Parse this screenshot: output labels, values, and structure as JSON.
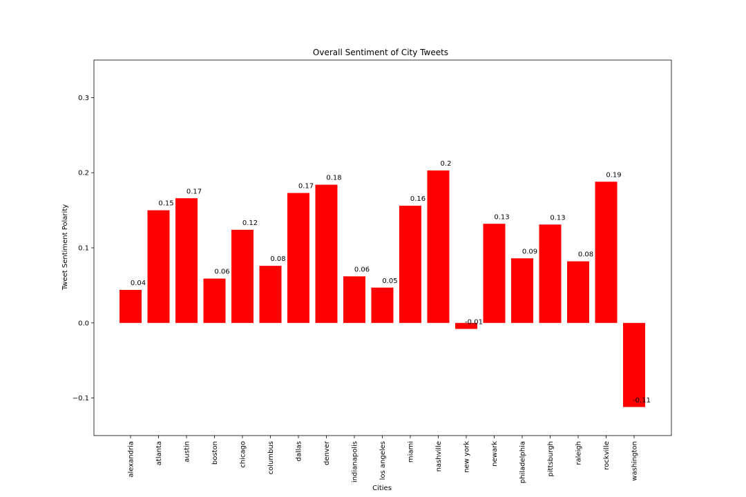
{
  "chart_data": {
    "type": "bar",
    "title": "Overall Sentiment of City Tweets",
    "xlabel": "Cities",
    "ylabel": "Tweet Sentiment Polarity",
    "categories": [
      "alexandria",
      "atlanta",
      "austin",
      "boston",
      "chicago",
      "columbus",
      "dallas",
      "denver",
      "indianapolis",
      "los angeles",
      "miami",
      "nashville",
      "new york",
      "newark",
      "philadelphia",
      "pittsburgh",
      "raleigh",
      "rockville",
      "washington"
    ],
    "values": [
      0.044,
      0.15,
      0.166,
      0.059,
      0.124,
      0.076,
      0.173,
      0.184,
      0.062,
      0.047,
      0.156,
      0.203,
      -0.008,
      0.132,
      0.086,
      0.131,
      0.082,
      0.188,
      -0.112
    ],
    "value_labels": [
      "0.04",
      "0.15",
      "0.17",
      "0.06",
      "0.12",
      "0.08",
      "0.17",
      "0.18",
      "0.06",
      "0.05",
      "0.16",
      "0.2",
      "-0.01",
      "0.13",
      "0.09",
      "0.13",
      "0.08",
      "0.19",
      "-0.11"
    ],
    "ylim": [
      -0.15,
      0.35
    ],
    "yticks": [
      -0.1,
      0.0,
      0.1,
      0.2,
      0.3
    ],
    "ytick_labels": [
      "−0.1",
      "0.0",
      "0.1",
      "0.2",
      "0.3"
    ],
    "bar_color": "#ff0000",
    "grid": false
  }
}
